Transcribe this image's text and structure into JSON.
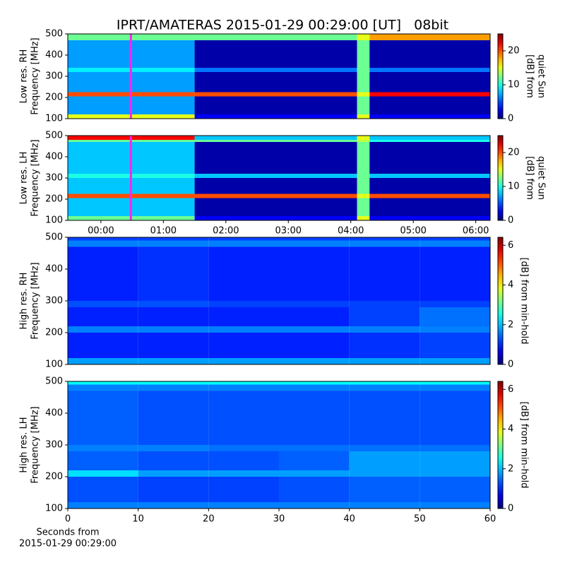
{
  "title": "IPRT/AMATERAS 2015-01-29 00:29:00 [UT]   08bit",
  "chart_data": [
    {
      "type": "heatmap",
      "ylabel": [
        "Low res. RH",
        "Frequency [MHz]"
      ],
      "ylim": [
        100,
        500
      ],
      "yticks": [
        100,
        200,
        300,
        400,
        500
      ],
      "xlim": [
        -0.53,
        6.23
      ],
      "colorbar": {
        "label": [
          "[dB] from",
          "quiet Sun"
        ],
        "lim": [
          0,
          25
        ],
        "ticks": [
          0,
          10,
          20
        ]
      },
      "marker": {
        "x": 0.48,
        "color": "#ff22ee"
      },
      "x_edges": [
        -0.53,
        1.5,
        4.1,
        4.3,
        6.23
      ],
      "y_edges": [
        100,
        120,
        205,
        225,
        320,
        340,
        470,
        500
      ],
      "z": [
        [
          15,
          3,
          15,
          3
        ],
        [
          7,
          1,
          12,
          1
        ],
        [
          20,
          20,
          15,
          22
        ],
        [
          7,
          1,
          12,
          1
        ],
        [
          9,
          6,
          12,
          6
        ],
        [
          7,
          1,
          12,
          1
        ],
        [
          12,
          12,
          15,
          18
        ]
      ]
    },
    {
      "type": "heatmap",
      "ylabel": [
        "Low res. LH",
        "Frequency [MHz]"
      ],
      "ylim": [
        100,
        500
      ],
      "yticks": [
        100,
        200,
        300,
        400,
        500
      ],
      "xlim": [
        -0.53,
        6.23
      ],
      "xticks": [
        {
          "value": 0,
          "label": "00:00"
        },
        {
          "value": 1,
          "label": "01:00"
        },
        {
          "value": 2,
          "label": "02:00"
        },
        {
          "value": 3,
          "label": "03:00"
        },
        {
          "value": 4,
          "label": "04:00"
        },
        {
          "value": 5,
          "label": "05:00"
        },
        {
          "value": 6,
          "label": "06:00"
        }
      ],
      "colorbar": {
        "label": [
          "[dB] from",
          "quiet Sun"
        ],
        "lim": [
          0,
          25
        ],
        "ticks": [
          0,
          10,
          20
        ]
      },
      "marker": {
        "x": 0.48,
        "color": "#ff22ee"
      },
      "x_edges": [
        -0.53,
        1.5,
        4.1,
        4.3,
        6.23
      ],
      "y_edges": [
        100,
        120,
        205,
        225,
        300,
        320,
        470,
        480,
        500
      ],
      "z": [
        [
          12,
          3,
          15,
          3
        ],
        [
          8,
          1,
          12,
          1
        ],
        [
          20,
          20,
          15,
          20
        ],
        [
          8,
          1,
          12,
          1
        ],
        [
          10,
          8,
          12,
          8
        ],
        [
          8,
          1,
          12,
          1
        ],
        [
          12,
          12,
          14,
          10
        ],
        [
          22,
          8,
          15,
          8
        ]
      ]
    },
    {
      "type": "heatmap",
      "ylabel": [
        "High res. RH",
        "Frequency [MHz]"
      ],
      "ylim": [
        100,
        500
      ],
      "yticks": [
        100,
        200,
        300,
        400,
        500
      ],
      "xlim": [
        0,
        60
      ],
      "colorbar": {
        "label": [
          "[dB] from min-hold"
        ],
        "lim": [
          0,
          6.4
        ],
        "ticks": [
          0,
          2,
          4,
          6
        ]
      },
      "x_edges": [
        0,
        10,
        20,
        30,
        40,
        50,
        60
      ],
      "y_edges": [
        100,
        120,
        200,
        220,
        280,
        300,
        470,
        490,
        500
      ],
      "z": [
        [
          1.8,
          1.8,
          1.8,
          1.8,
          1.8,
          1.8
        ],
        [
          1,
          1,
          1,
          1,
          1.1,
          1.2
        ],
        [
          1.6,
          1.6,
          1.6,
          1.6,
          1.6,
          1.6
        ],
        [
          1,
          1,
          1,
          1,
          1.2,
          1.5
        ],
        [
          1.3,
          1.3,
          1.2,
          1.2,
          1.2,
          1.2
        ],
        [
          1,
          1.1,
          1,
          1,
          1,
          1
        ],
        [
          1.6,
          1.6,
          1.6,
          1.6,
          1.6,
          1.6
        ],
        [
          1.2,
          1.2,
          1.2,
          1.2,
          1.2,
          1.2
        ]
      ]
    },
    {
      "type": "heatmap",
      "ylabel": [
        "High res. LH",
        "Frequency [MHz]"
      ],
      "ylim": [
        100,
        500
      ],
      "yticks": [
        100,
        200,
        300,
        400,
        500
      ],
      "xlim": [
        0,
        60
      ],
      "xticks": [
        0,
        10,
        20,
        30,
        40,
        50,
        60
      ],
      "xlabel": [
        "Seconds from",
        "2015-01-29 00:29:00"
      ],
      "colorbar": {
        "label": [
          "[dB] from min-hold"
        ],
        "lim": [
          0,
          6.4
        ],
        "ticks": [
          0,
          2,
          4,
          6
        ]
      },
      "x_edges": [
        0,
        10,
        20,
        30,
        40,
        50,
        60
      ],
      "y_edges": [
        100,
        120,
        200,
        220,
        280,
        300,
        470,
        490,
        500
      ],
      "z": [
        [
          1.6,
          1.6,
          1.6,
          1.6,
          1.6,
          1.6
        ],
        [
          1.3,
          1.2,
          1.2,
          1.3,
          1.4,
          1.4
        ],
        [
          2.2,
          1.8,
          1.8,
          1.8,
          1.8,
          1.8
        ],
        [
          1.4,
          1.3,
          1.3,
          1.4,
          1.8,
          1.8
        ],
        [
          1.6,
          1.6,
          1.5,
          1.5,
          1.5,
          1.5
        ],
        [
          1.4,
          1.3,
          1.3,
          1.3,
          1.3,
          1.3
        ],
        [
          1.6,
          1.6,
          1.6,
          1.6,
          1.6,
          1.6
        ],
        [
          2.4,
          2.4,
          2.4,
          2.4,
          2.4,
          2.4
        ]
      ]
    }
  ]
}
